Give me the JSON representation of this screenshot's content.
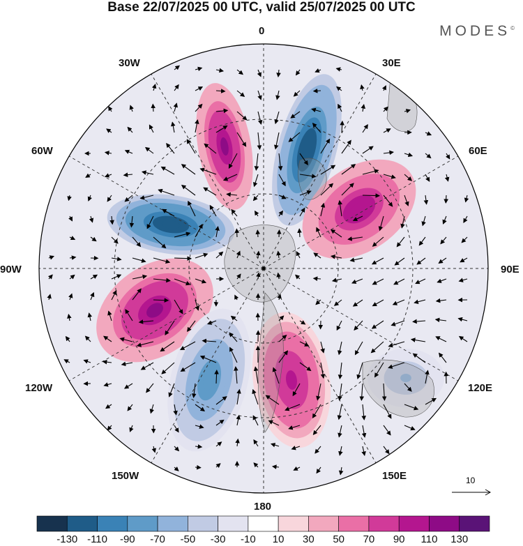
{
  "title": "Base 22/07/2025 00 UTC, valid 25/07/2025 00 UTC",
  "brand": "MODES",
  "brand_mark": "©",
  "longitude_labels": {
    "lon_0": "0",
    "lon_30e": "30E",
    "lon_60e": "60E",
    "lon_90e": "90E",
    "lon_120e": "120E",
    "lon_150e": "150E",
    "lon_180": "180",
    "lon_150w": "150W",
    "lon_120w": "120W",
    "lon_90w": "90W",
    "lon_60w": "60W",
    "lon_30w": "30W"
  },
  "vector_reference": "10",
  "colorbar": {
    "colors": [
      "#17324e",
      "#1f5c88",
      "#3a82b6",
      "#5f9bc8",
      "#91b3db",
      "#c1cbe4",
      "#e3e3f0",
      "#ffffff",
      "#f8d6dc",
      "#f2a8be",
      "#ea6fa6",
      "#d13a99",
      "#b4168f",
      "#8e0b86",
      "#5a1377"
    ],
    "tick_labels": [
      "-130",
      "-110",
      "-90",
      "-70",
      "-50",
      "-30",
      "-10",
      "10",
      "30",
      "50",
      "70",
      "90",
      "110",
      "130"
    ]
  },
  "anomaly_centers": [
    {
      "name": "positive-anomaly-near-0-lon",
      "sign": "positive",
      "strength": 115
    },
    {
      "name": "negative-anomaly-20e",
      "sign": "negative",
      "strength": -125
    },
    {
      "name": "positive-anomaly-55e",
      "sign": "positive",
      "strength": 105
    },
    {
      "name": "negative-anomaly-70w",
      "sign": "negative",
      "strength": -130
    },
    {
      "name": "positive-anomaly-100w",
      "sign": "positive",
      "strength": 110
    },
    {
      "name": "negative-anomaly-140w",
      "sign": "negative",
      "strength": -90
    },
    {
      "name": "positive-anomaly-165e",
      "sign": "positive",
      "strength": 95
    },
    {
      "name": "negative-anomaly-120e",
      "sign": "negative",
      "strength": -55
    }
  ]
}
